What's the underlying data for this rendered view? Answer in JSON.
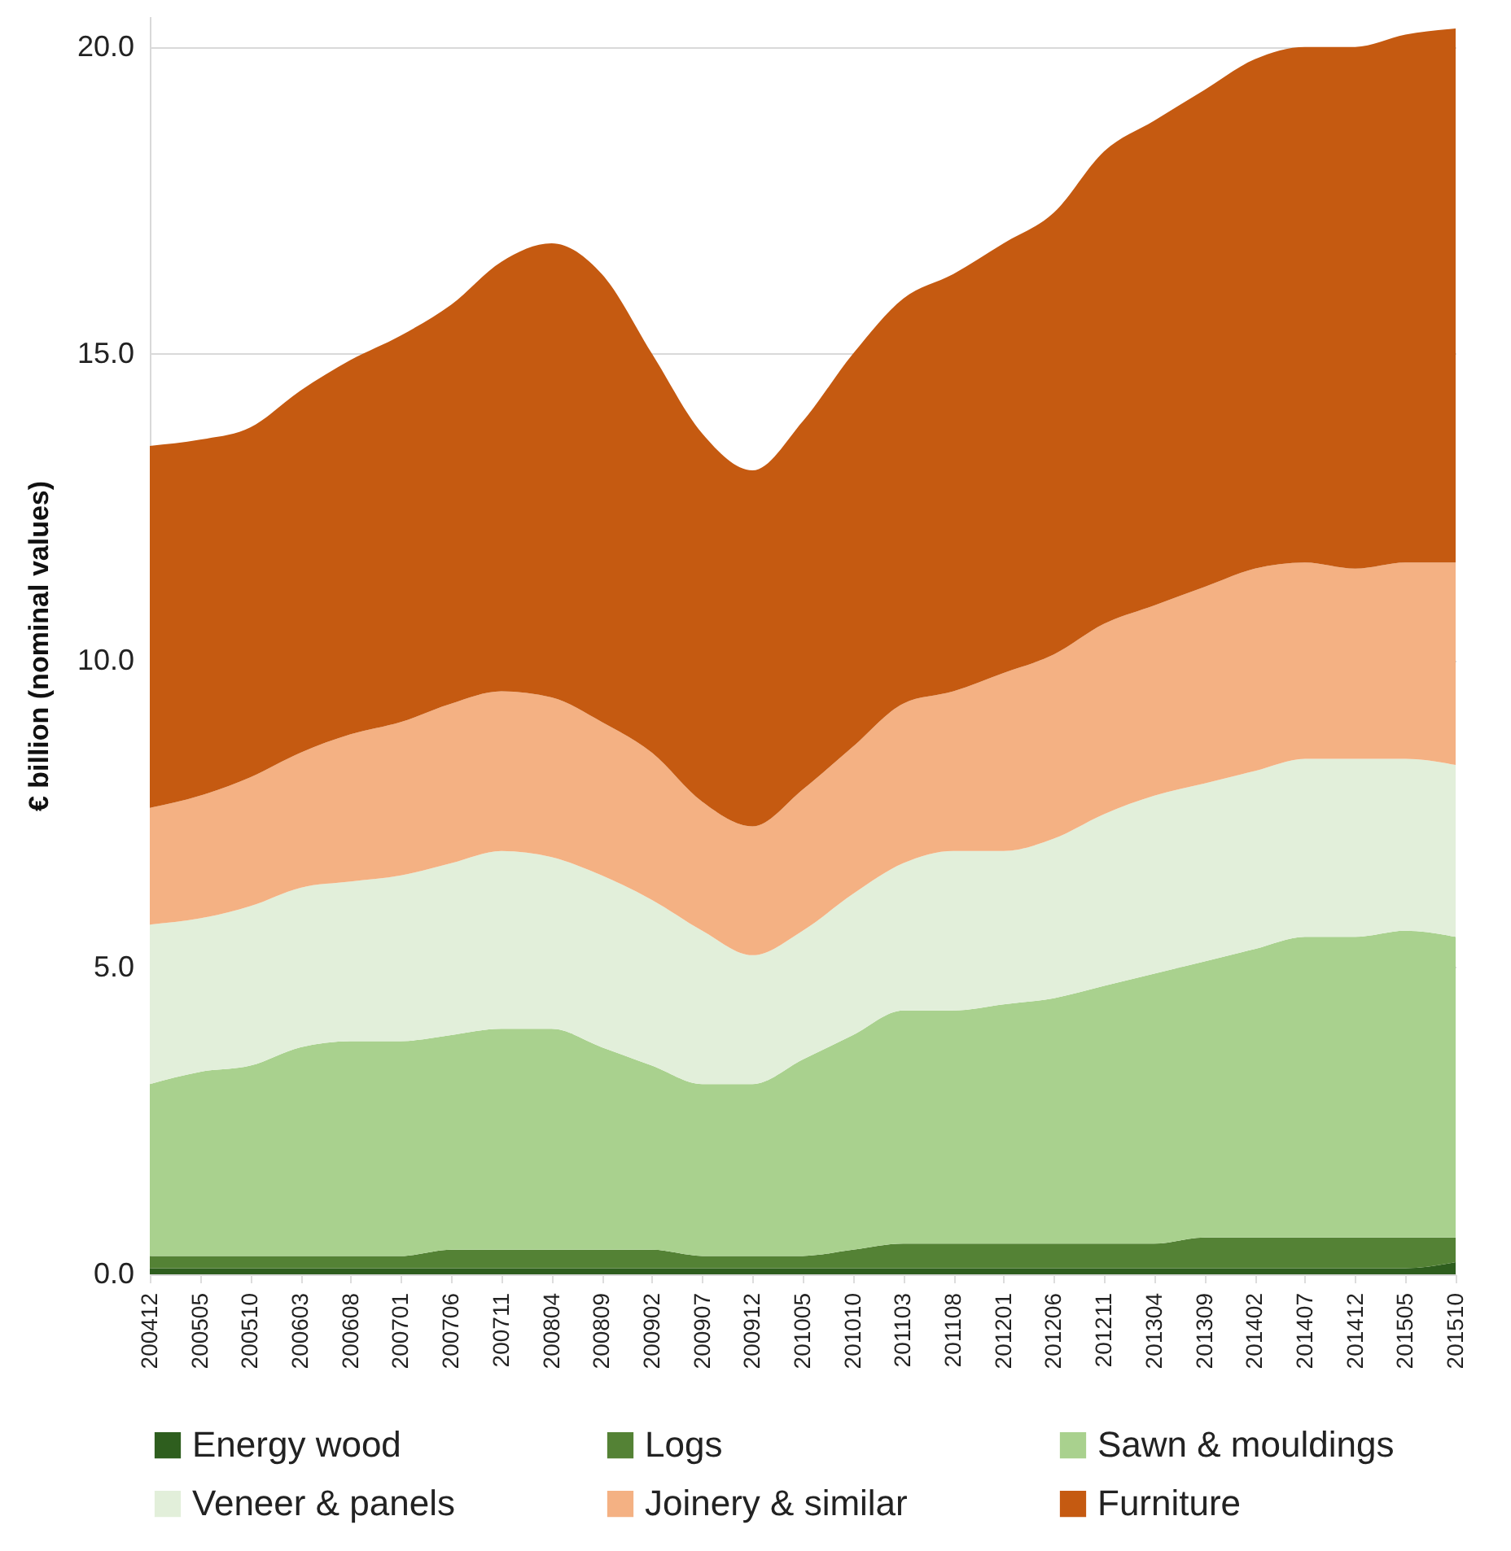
{
  "chart_data": {
    "type": "area",
    "stacked": true,
    "ylabel": "€ billion (nominal values)",
    "categories": [
      "200412",
      "200505",
      "200510",
      "200603",
      "200608",
      "200701",
      "200706",
      "200711",
      "200804",
      "200809",
      "200902",
      "200907",
      "200912",
      "201005",
      "201010",
      "201103",
      "201108",
      "201201",
      "201206",
      "201211",
      "201304",
      "201309",
      "201402",
      "201407",
      "201412",
      "201505",
      "201510"
    ],
    "series": [
      {
        "name": "Energy wood",
        "color": "#2e5e1e",
        "values": [
          0.1,
          0.1,
          0.1,
          0.1,
          0.1,
          0.1,
          0.1,
          0.1,
          0.1,
          0.1,
          0.1,
          0.1,
          0.1,
          0.1,
          0.1,
          0.1,
          0.1,
          0.1,
          0.1,
          0.1,
          0.1,
          0.1,
          0.1,
          0.1,
          0.1,
          0.1,
          0.2
        ]
      },
      {
        "name": "Logs",
        "color": "#548235",
        "values": [
          0.2,
          0.2,
          0.2,
          0.2,
          0.2,
          0.2,
          0.3,
          0.3,
          0.3,
          0.3,
          0.3,
          0.2,
          0.2,
          0.2,
          0.3,
          0.4,
          0.4,
          0.4,
          0.4,
          0.4,
          0.4,
          0.5,
          0.5,
          0.5,
          0.5,
          0.5,
          0.4
        ]
      },
      {
        "name": "Sawn & mouldings",
        "color": "#a9d18e",
        "values": [
          2.8,
          3.0,
          3.1,
          3.4,
          3.5,
          3.5,
          3.5,
          3.6,
          3.6,
          3.3,
          3.0,
          2.8,
          2.8,
          3.2,
          3.5,
          3.8,
          3.8,
          3.9,
          4.0,
          4.2,
          4.4,
          4.5,
          4.7,
          4.9,
          4.9,
          5.0,
          4.9
        ]
      },
      {
        "name": "Veneer & panels",
        "color": "#e2efda",
        "values": [
          2.6,
          2.5,
          2.6,
          2.6,
          2.6,
          2.7,
          2.8,
          2.9,
          2.8,
          2.8,
          2.7,
          2.5,
          2.1,
          2.1,
          2.3,
          2.4,
          2.6,
          2.5,
          2.6,
          2.8,
          2.9,
          2.9,
          2.9,
          2.9,
          2.9,
          2.8,
          2.8
        ]
      },
      {
        "name": "Joinery & similar",
        "color": "#f4b183",
        "values": [
          1.9,
          2.0,
          2.1,
          2.2,
          2.4,
          2.5,
          2.6,
          2.6,
          2.6,
          2.5,
          2.4,
          2.1,
          2.1,
          2.3,
          2.4,
          2.6,
          2.6,
          2.9,
          3.0,
          3.1,
          3.1,
          3.2,
          3.3,
          3.2,
          3.1,
          3.2,
          3.3
        ]
      },
      {
        "name": "Furniture",
        "color": "#c55a11",
        "values": [
          5.9,
          5.8,
          5.7,
          5.9,
          6.1,
          6.3,
          6.5,
          7.0,
          7.4,
          7.3,
          6.5,
          6.0,
          5.8,
          6.0,
          6.4,
          6.6,
          6.8,
          7.0,
          7.2,
          7.7,
          7.9,
          8.1,
          8.3,
          8.4,
          8.5,
          8.6,
          8.7
        ]
      }
    ],
    "ylim": [
      0,
      20.5
    ],
    "yticks": [
      {
        "value": 0,
        "label": "0.0"
      },
      {
        "value": 5,
        "label": "5.0"
      },
      {
        "value": 10,
        "label": "10.0"
      },
      {
        "value": 15,
        "label": "15.0"
      },
      {
        "value": 20,
        "label": "20.0"
      }
    ],
    "grid": "y",
    "legend": "bottom"
  }
}
